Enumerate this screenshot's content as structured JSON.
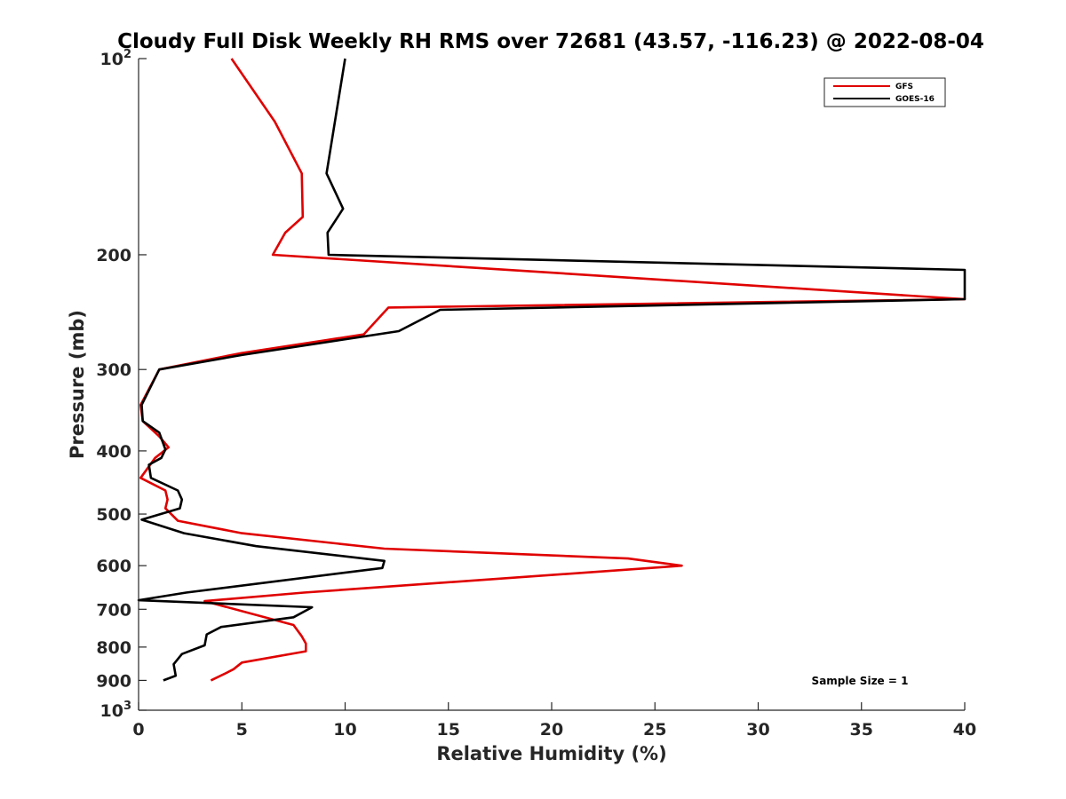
{
  "chart_data": {
    "type": "line",
    "title": "Cloudy Full Disk Weekly RH RMS over 72681 (43.57, -116.23) @ 2022-08-04",
    "xlabel": "Relative Humidity (%)",
    "ylabel": "Pressure (mb)",
    "xlim": [
      0,
      40
    ],
    "ylim": [
      100,
      1000
    ],
    "yscale": "log",
    "y_reversed": true,
    "x_ticks": [
      0,
      5,
      10,
      15,
      20,
      25,
      30,
      35,
      40
    ],
    "x_tick_labels": [
      "0",
      "5",
      "10",
      "15",
      "20",
      "25",
      "30",
      "35",
      "40"
    ],
    "y_ticks": [
      100,
      200,
      300,
      400,
      500,
      600,
      700,
      800,
      900,
      1000
    ],
    "y_tick_labels": [
      {
        "base": "10",
        "exp": "2"
      },
      {
        "base": "200",
        "exp": ""
      },
      {
        "base": "300",
        "exp": ""
      },
      {
        "base": "400",
        "exp": ""
      },
      {
        "base": "500",
        "exp": ""
      },
      {
        "base": "600",
        "exp": ""
      },
      {
        "base": "700",
        "exp": ""
      },
      {
        "base": "800",
        "exp": ""
      },
      {
        "base": "900",
        "exp": ""
      },
      {
        "base": "10",
        "exp": "3"
      }
    ],
    "grid": false,
    "legend_position": "top-right",
    "annotation": "Sample Size = 1",
    "series": [
      {
        "name": "GFS",
        "color": "#e00000",
        "points": [
          [
            4.5,
            100
          ],
          [
            6.6,
            125
          ],
          [
            7.9,
            150
          ],
          [
            7.95,
            175
          ],
          [
            7.1,
            185
          ],
          [
            6.5,
            200
          ],
          [
            40.0,
            234
          ],
          [
            12.1,
            241
          ],
          [
            10.9,
            265
          ],
          [
            5.0,
            283
          ],
          [
            1.0,
            300
          ],
          [
            0.1,
            340
          ],
          [
            0.2,
            360
          ],
          [
            1.0,
            380
          ],
          [
            1.45,
            395
          ],
          [
            0.8,
            410
          ],
          [
            0.1,
            440
          ],
          [
            1.3,
            460
          ],
          [
            1.4,
            475
          ],
          [
            1.3,
            490
          ],
          [
            1.9,
            512
          ],
          [
            5.0,
            535
          ],
          [
            11.9,
            565
          ],
          [
            23.7,
            585
          ],
          [
            26.3,
            600
          ],
          [
            8.0,
            660
          ],
          [
            3.2,
            680
          ],
          [
            7.5,
            740
          ],
          [
            7.9,
            770
          ],
          [
            8.1,
            790
          ],
          [
            8.1,
            812
          ],
          [
            5.0,
            845
          ],
          [
            4.6,
            865
          ],
          [
            4.3,
            875
          ],
          [
            3.5,
            900
          ]
        ]
      },
      {
        "name": "GOES-16",
        "color": "#000000",
        "points": [
          [
            10.0,
            100
          ],
          [
            9.1,
            150
          ],
          [
            9.9,
            170
          ],
          [
            9.15,
            185
          ],
          [
            9.2,
            200
          ],
          [
            40.0,
            211
          ],
          [
            40.0,
            234
          ],
          [
            14.6,
            243
          ],
          [
            12.6,
            262
          ],
          [
            5.0,
            285
          ],
          [
            1.0,
            300
          ],
          [
            0.15,
            340
          ],
          [
            0.2,
            360
          ],
          [
            1.0,
            375
          ],
          [
            1.3,
            398
          ],
          [
            1.1,
            410
          ],
          [
            0.5,
            420
          ],
          [
            0.6,
            440
          ],
          [
            1.9,
            460
          ],
          [
            2.1,
            475
          ],
          [
            2.0,
            490
          ],
          [
            0.15,
            510
          ],
          [
            2.2,
            535
          ],
          [
            5.7,
            560
          ],
          [
            11.9,
            590
          ],
          [
            11.8,
            605
          ],
          [
            2.3,
            660
          ],
          [
            0.0,
            678
          ],
          [
            8.4,
            695
          ],
          [
            7.5,
            720
          ],
          [
            4.0,
            745
          ],
          [
            3.3,
            765
          ],
          [
            3.2,
            795
          ],
          [
            2.1,
            820
          ],
          [
            1.7,
            850
          ],
          [
            1.8,
            885
          ],
          [
            1.2,
            900
          ]
        ]
      }
    ]
  }
}
